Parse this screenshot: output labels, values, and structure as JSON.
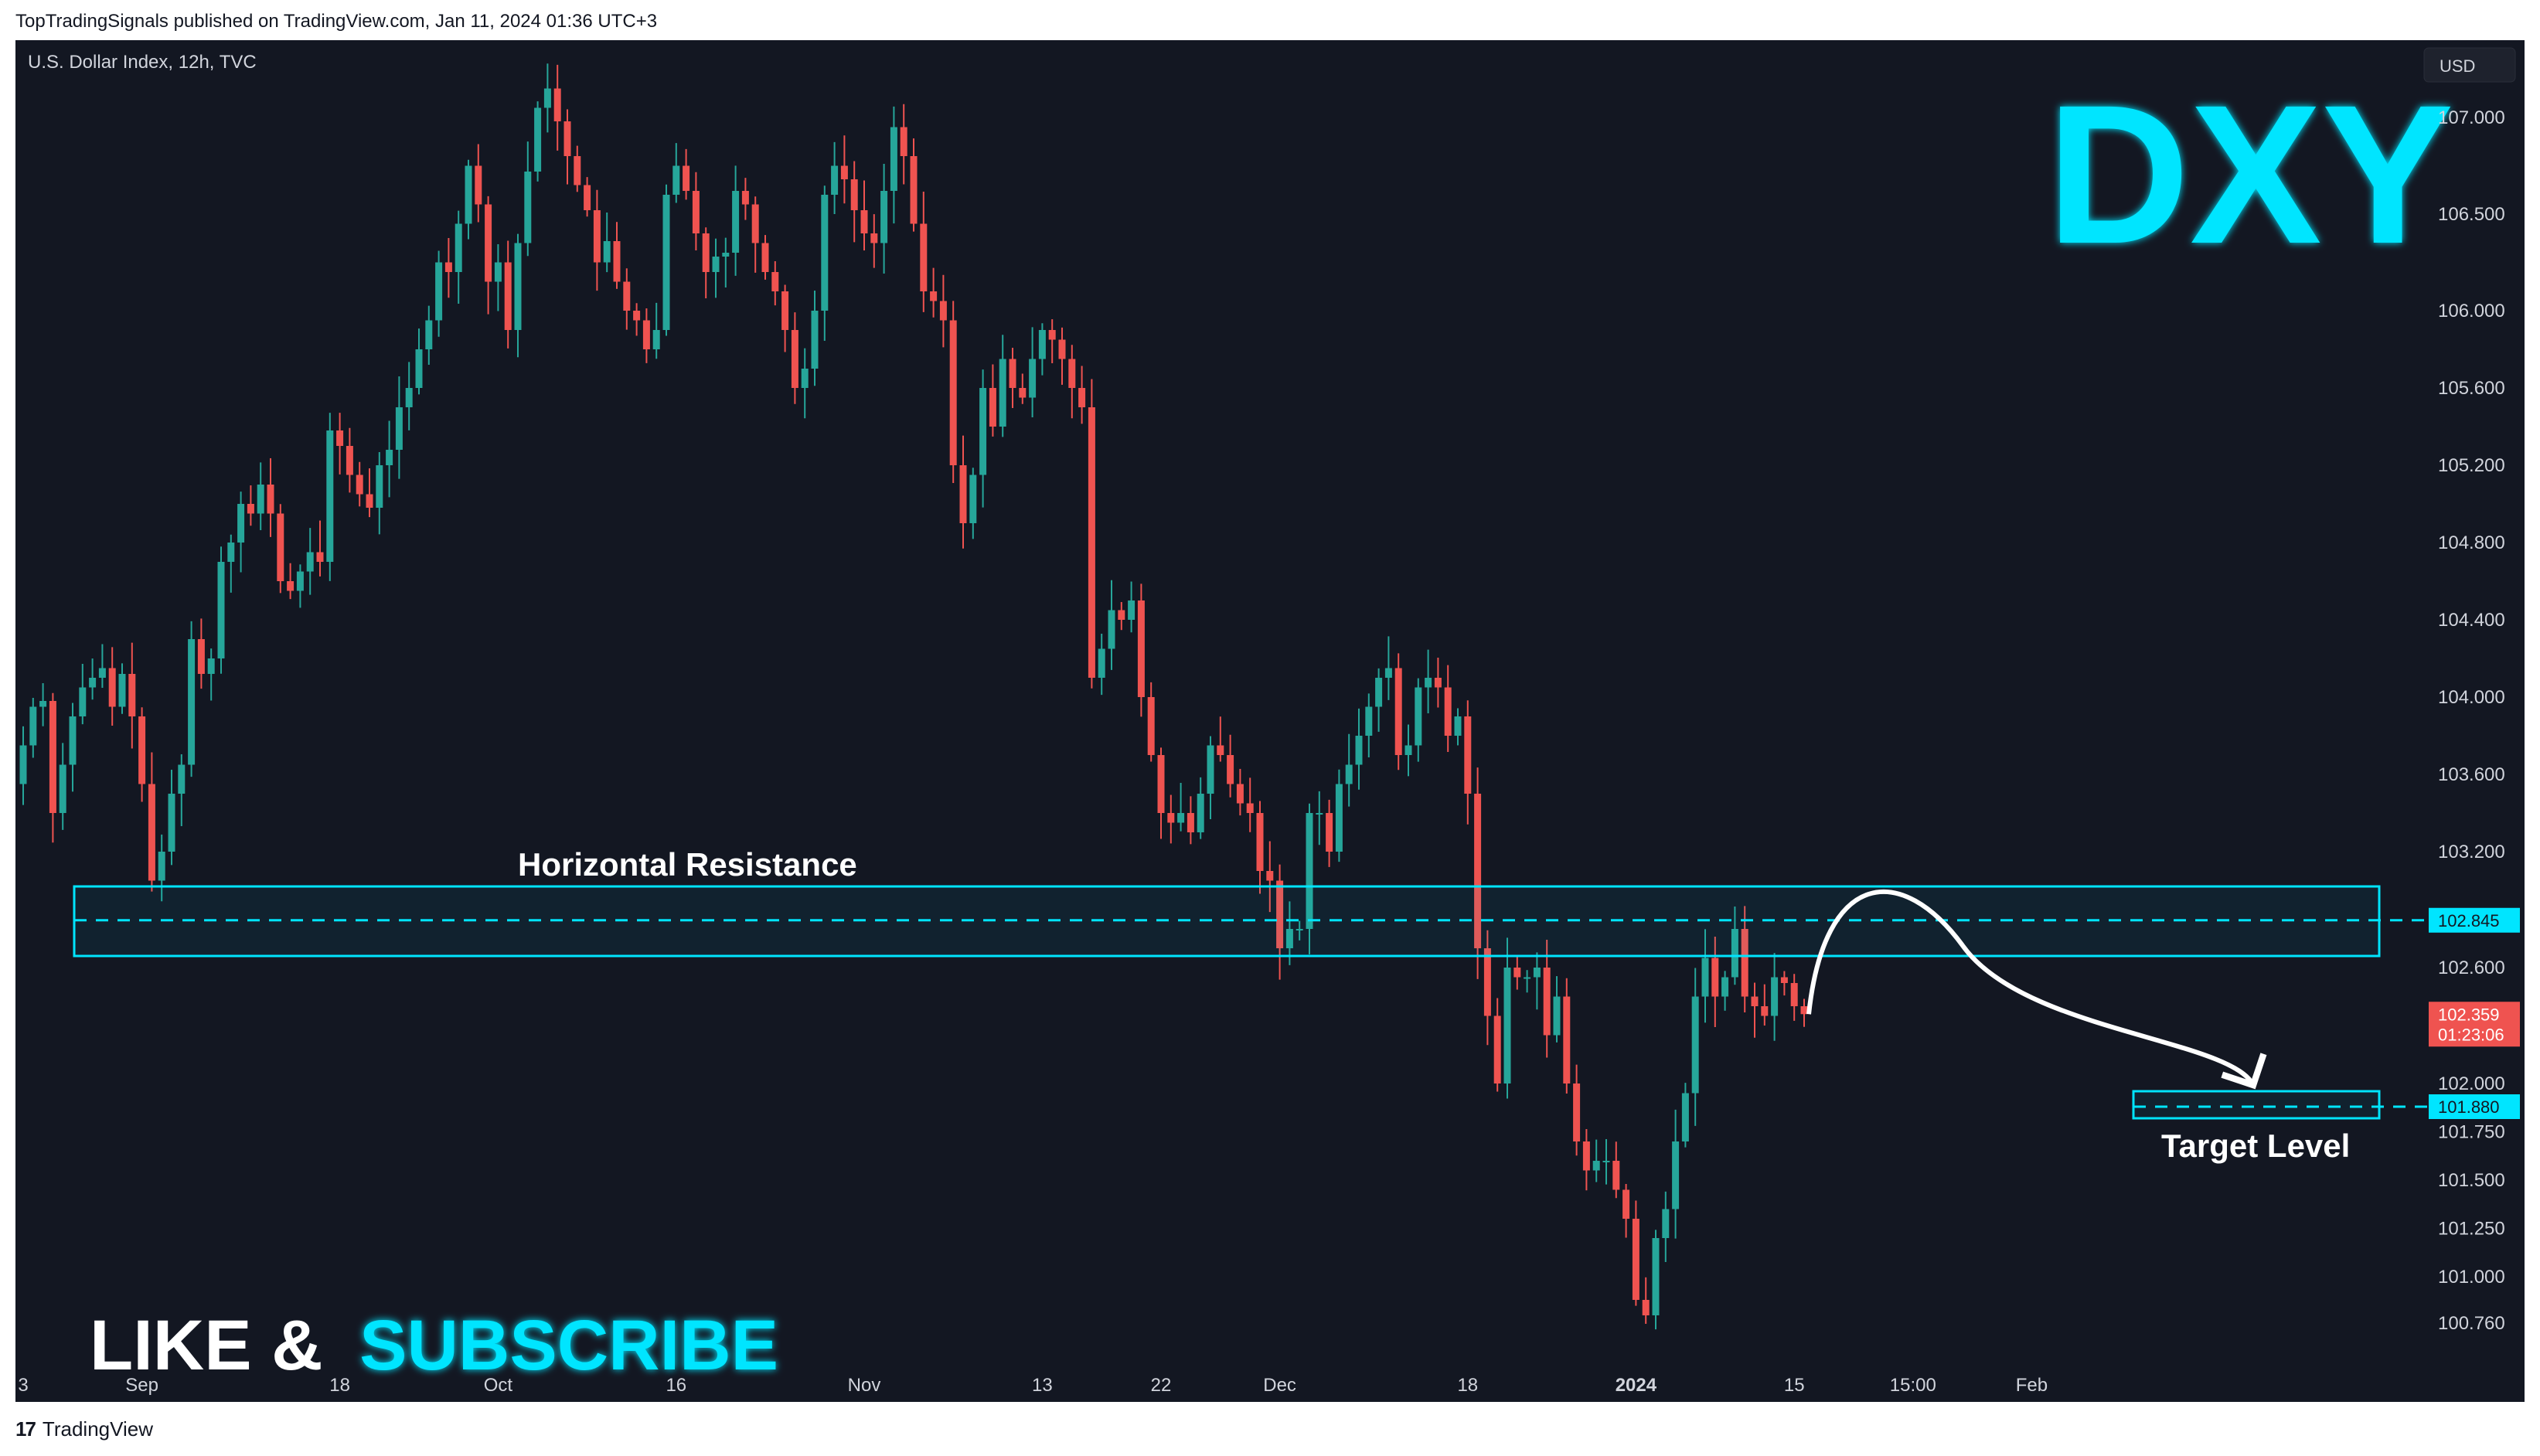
{
  "header": {
    "published": "TopTradingSignals published on TradingView.com, Jan 11, 2024 01:36 UTC+3"
  },
  "footer": {
    "logo_mark": "17",
    "brand": "TradingView"
  },
  "symbol": {
    "title": "U.S. Dollar Index, 12h, TVC",
    "currency": "USD",
    "ticker": "DXY"
  },
  "price_scale": {
    "badge_resistance": "102.845",
    "badge_last": "102.359",
    "badge_countdown": "01:23:06",
    "badge_target": "101.880"
  },
  "annotations": {
    "resistance_label": "Horizontal Resistance",
    "target_label": "Target Level",
    "promo_like": "LIKE &",
    "promo_subscribe": "SUBSCRIBE"
  },
  "colors": {
    "up": "#26a69a",
    "down": "#ef5350",
    "accent": "#00e5ff",
    "background": "#131722",
    "axis_text": "#d1d4dc"
  },
  "chart_data": {
    "type": "candlestick",
    "interval": "12h",
    "y_ticks": [
      "107.000",
      "106.500",
      "106.000",
      "105.600",
      "105.200",
      "104.800",
      "104.400",
      "104.000",
      "103.600",
      "103.200",
      "102.600",
      "102.000",
      "101.750",
      "101.500",
      "101.250",
      "101.000",
      "100.760"
    ],
    "y_tick_values": [
      107.0,
      106.5,
      106.0,
      105.6,
      105.2,
      104.8,
      104.4,
      104.0,
      103.6,
      103.2,
      102.6,
      102.0,
      101.75,
      101.5,
      101.25,
      101.0,
      100.76
    ],
    "x_ticks": [
      "3",
      "Sep",
      "18",
      "Oct",
      "16",
      "Nov",
      "13",
      "22",
      "Dec",
      "18",
      "2024",
      "15",
      "15:00",
      "Feb"
    ],
    "x_tick_indices": [
      0,
      12,
      32,
      48,
      66,
      85,
      103,
      115,
      127,
      146,
      163,
      179,
      191,
      203
    ],
    "resistance_zone": {
      "top": 103.02,
      "bottom": 102.66,
      "level": 102.845
    },
    "target_zone": {
      "top": 101.96,
      "bottom": 101.82,
      "level": 101.88
    },
    "projection": "rise to 102.845 then fall to 101.880",
    "closes": [
      103.75,
      103.95,
      103.98,
      103.4,
      103.65,
      103.9,
      104.05,
      104.1,
      104.15,
      103.95,
      104.12,
      103.9,
      103.55,
      103.05,
      103.2,
      103.5,
      103.65,
      104.3,
      104.12,
      104.2,
      104.7,
      104.8,
      105.0,
      104.95,
      105.1,
      104.95,
      104.6,
      104.55,
      104.65,
      104.75,
      104.7,
      105.38,
      105.3,
      105.15,
      105.05,
      104.98,
      105.2,
      105.28,
      105.5,
      105.6,
      105.8,
      105.95,
      106.25,
      106.2,
      106.45,
      106.75,
      106.55,
      106.15,
      106.25,
      105.9,
      106.35,
      106.72,
      107.05,
      107.15,
      106.98,
      106.8,
      106.65,
      106.52,
      106.25,
      106.36,
      106.15,
      106.0,
      105.95,
      105.8,
      105.9,
      106.6,
      106.75,
      106.62,
      106.4,
      106.2,
      106.28,
      106.3,
      106.62,
      106.55,
      106.35,
      106.2,
      106.1,
      105.9,
      105.6,
      105.7,
      106.0,
      106.6,
      106.75,
      106.68,
      106.52,
      106.4,
      106.35,
      106.62,
      106.95,
      106.8,
      106.45,
      106.1,
      106.05,
      105.95,
      105.2,
      104.9,
      105.15,
      105.6,
      105.4,
      105.75,
      105.6,
      105.55,
      105.75,
      105.9,
      105.85,
      105.75,
      105.6,
      105.5,
      104.1,
      104.25,
      104.45,
      104.4,
      104.5,
      104.0,
      103.7,
      103.4,
      103.35,
      103.4,
      103.3,
      103.5,
      103.75,
      103.7,
      103.55,
      103.45,
      103.4,
      103.1,
      103.05,
      102.7,
      102.8,
      102.8,
      103.4,
      103.4,
      103.2,
      103.55,
      103.65,
      103.8,
      103.95,
      104.1,
      104.15,
      103.7,
      103.75,
      104.05,
      104.1,
      104.05,
      103.8,
      103.9,
      103.5,
      102.7,
      102.35,
      102.0,
      102.6,
      102.55,
      102.55,
      102.6,
      102.25,
      102.45,
      102.0,
      101.7,
      101.55,
      101.6,
      101.6,
      101.45,
      101.3,
      100.88,
      100.8,
      101.2,
      101.35,
      101.7,
      101.95,
      102.45,
      102.65,
      102.45,
      102.55,
      102.8,
      102.45,
      102.4,
      102.35,
      102.55,
      102.52,
      102.4,
      102.359
    ]
  }
}
